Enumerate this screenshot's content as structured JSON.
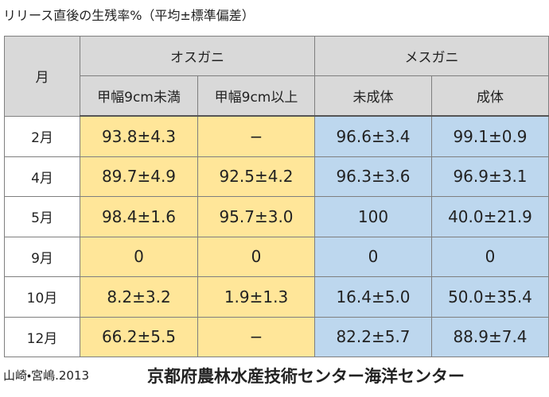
{
  "title": "リリース直後の生残率%（平均±標準偏差）",
  "table": {
    "month_header": "月",
    "groups": [
      "オスガニ",
      "メスガニ"
    ],
    "columns": [
      "甲幅9cm未満",
      "甲幅9cm以上",
      "未成体",
      "成体"
    ],
    "rows": [
      [
        "2月",
        "93.8±4.3",
        "−",
        "96.6±3.4",
        "99.1±0.9"
      ],
      [
        "4月",
        "89.7±4.9",
        "92.5±4.2",
        "96.3±3.6",
        "96.9±3.1"
      ],
      [
        "5月",
        "98.4±1.6",
        "95.7±3.0",
        "100",
        "40.0±21.9"
      ],
      [
        "9月",
        "0",
        "0",
        "0",
        "0"
      ],
      [
        "10月",
        "8.2±3.2",
        "1.9±1.3",
        "16.4±5.0",
        "50.0±35.4"
      ],
      [
        "12月",
        "66.2±5.5",
        "−",
        "82.2±5.7",
        "88.9±7.4"
      ]
    ]
  },
  "footer": {
    "citation": "山崎・宮嶋.2013",
    "organization": "京都府農林水産技術センター海洋センター"
  }
}
